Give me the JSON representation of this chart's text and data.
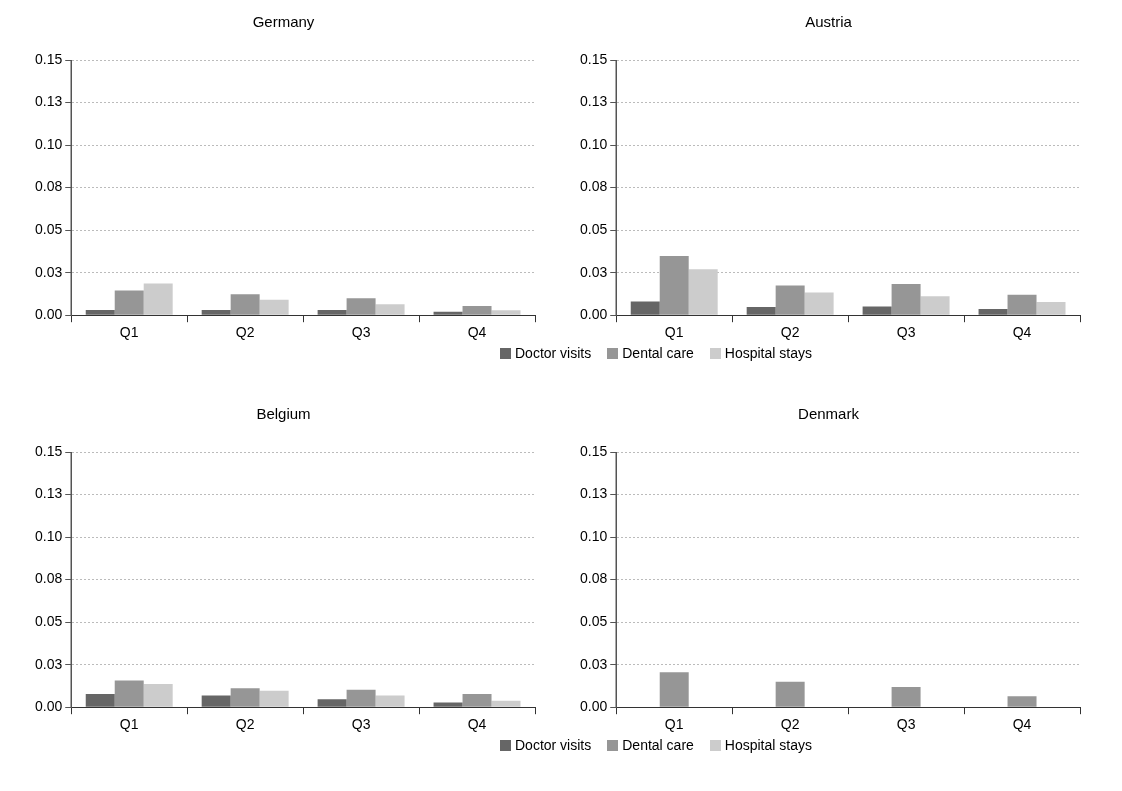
{
  "chart_data": [
    {
      "type": "bar",
      "title": "Germany",
      "categories": [
        "Q1",
        "Q2",
        "Q3",
        "Q4"
      ],
      "ylim": [
        0,
        0.15
      ],
      "yticks": [
        {
          "value": 0,
          "label": "0.00"
        },
        {
          "value": 0.025,
          "label": "0.03"
        },
        {
          "value": 0.05,
          "label": "0.05"
        },
        {
          "value": 0.075,
          "label": "0.08"
        },
        {
          "value": 0.1,
          "label": "0.10"
        },
        {
          "value": 0.125,
          "label": "0.13"
        },
        {
          "value": 0.15,
          "label": "0.15"
        }
      ],
      "grid": "y",
      "legend": "bottom",
      "series": [
        {
          "name": "Doctor visits",
          "color": "#666666",
          "values": [
            0.003,
            0.003,
            0.003,
            0.002
          ]
        },
        {
          "name": "Dental care",
          "color": "#969696",
          "values": [
            0.0145,
            0.0123,
            0.01,
            0.0054
          ]
        },
        {
          "name": "Hospital stays",
          "color": "#cccccc",
          "values": [
            0.0186,
            0.0091,
            0.0064,
            0.0029
          ]
        }
      ]
    },
    {
      "type": "bar",
      "title": "Austria",
      "categories": [
        "Q1",
        "Q2",
        "Q3",
        "Q4"
      ],
      "ylim": [
        0,
        0.15
      ],
      "yticks": [
        {
          "value": 0,
          "label": "0.00"
        },
        {
          "value": 0.025,
          "label": "0.03"
        },
        {
          "value": 0.05,
          "label": "0.05"
        },
        {
          "value": 0.075,
          "label": "0.08"
        },
        {
          "value": 0.1,
          "label": "0.10"
        },
        {
          "value": 0.125,
          "label": "0.13"
        },
        {
          "value": 0.15,
          "label": "0.15"
        }
      ],
      "grid": "y",
      "series": [
        {
          "color": "#666666",
          "values": [
            0.008,
            0.0048,
            0.0051,
            0.0037
          ]
        },
        {
          "color": "#969696",
          "values": [
            0.0348,
            0.0174,
            0.0183,
            0.012
          ]
        },
        {
          "color": "#cccccc",
          "values": [
            0.027,
            0.0133,
            0.0112,
            0.0078
          ]
        }
      ]
    },
    {
      "type": "bar",
      "title": "Belgium",
      "categories": [
        "Q1",
        "Q2",
        "Q3",
        "Q4"
      ],
      "ylim": [
        0,
        0.15
      ],
      "yticks": [
        {
          "value": 0,
          "label": "0.00"
        },
        {
          "value": 0.025,
          "label": "0.03"
        },
        {
          "value": 0.05,
          "label": "0.05"
        },
        {
          "value": 0.075,
          "label": "0.08"
        },
        {
          "value": 0.1,
          "label": "0.10"
        },
        {
          "value": 0.125,
          "label": "0.13"
        },
        {
          "value": 0.15,
          "label": "0.15"
        }
      ],
      "grid": "y",
      "legend": "bottom",
      "series": [
        {
          "name": "Doctor visits",
          "color": "#666666",
          "values": [
            0.0078,
            0.0069,
            0.0047,
            0.0027
          ]
        },
        {
          "name": "Dental care",
          "color": "#969696",
          "values": [
            0.0157,
            0.0111,
            0.0102,
            0.0078
          ]
        },
        {
          "name": "Hospital stays",
          "color": "#cccccc",
          "values": [
            0.0137,
            0.0097,
            0.0069,
            0.0038
          ]
        }
      ]
    },
    {
      "type": "bar",
      "title": "Denmark",
      "categories": [
        "Q1",
        "Q2",
        "Q3",
        "Q4"
      ],
      "ylim": [
        0,
        0.15
      ],
      "yticks": [
        {
          "value": 0,
          "label": "0.00"
        },
        {
          "value": 0.025,
          "label": "0.03"
        },
        {
          "value": 0.05,
          "label": "0.05"
        },
        {
          "value": 0.075,
          "label": "0.08"
        },
        {
          "value": 0.1,
          "label": "0.10"
        },
        {
          "value": 0.125,
          "label": "0.13"
        },
        {
          "value": 0.15,
          "label": "0.15"
        }
      ],
      "grid": "y",
      "series": [
        {
          "color": "#666666",
          "values": [
            0.0003,
            0.0003,
            0.0003,
            0.0003
          ]
        },
        {
          "color": "#969696",
          "values": [
            0.0205,
            0.015,
            0.0118,
            0.0065
          ]
        },
        {
          "color": "#cccccc",
          "values": [
            null,
            null,
            null,
            null
          ]
        }
      ]
    }
  ]
}
